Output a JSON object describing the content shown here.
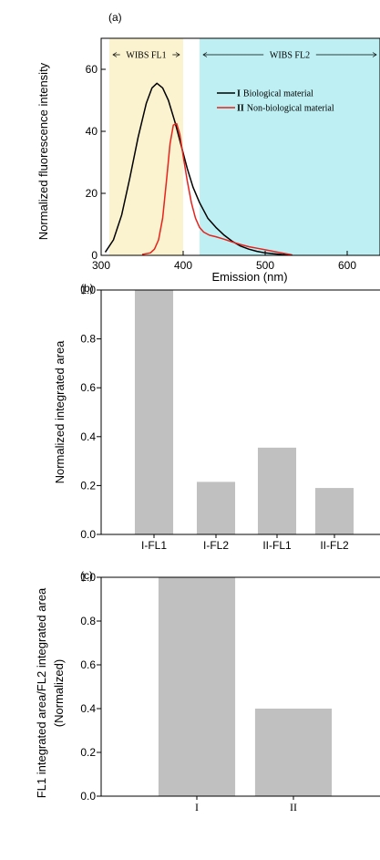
{
  "chart_data": [
    {
      "panel_label": "(a)",
      "type": "line",
      "xlabel": "Emission (nm)",
      "ylabel": "Normalized fluorescence intensity",
      "xlim": [
        300,
        640
      ],
      "ylim": [
        0,
        70
      ],
      "xticks": [
        300,
        400,
        500,
        600
      ],
      "yticks": [
        0,
        20,
        40,
        60
      ],
      "bands": [
        {
          "label": "WIBS FL1",
          "range": [
            310,
            400
          ],
          "color": "#fbf3cf"
        },
        {
          "label": "WIBS FL2",
          "range": [
            420,
            640
          ],
          "color": "#bdeff3"
        }
      ],
      "legend": "top-right",
      "series": [
        {
          "marker": "I",
          "name": "Biological material",
          "color": "#000000",
          "x": [
            305,
            315,
            325,
            335,
            345,
            355,
            362,
            368,
            375,
            382,
            390,
            398,
            405,
            412,
            420,
            430,
            440,
            450,
            460,
            470,
            480,
            490,
            500,
            510,
            520,
            530,
            533
          ],
          "y": [
            1,
            5,
            13,
            25,
            38,
            49,
            54,
            55.5,
            54,
            50,
            43,
            35,
            28,
            22,
            17,
            12,
            9,
            6.5,
            4.5,
            3,
            2,
            1.3,
            0.8,
            0.5,
            0.3,
            0.2,
            0.1
          ]
        },
        {
          "marker": "II",
          "name": "Non-biological material",
          "color": "#e8221c",
          "x": [
            350,
            360,
            365,
            370,
            375,
            380,
            384,
            388,
            392,
            396,
            400,
            405,
            410,
            415,
            420,
            425,
            432,
            440,
            450,
            460,
            470,
            480,
            490,
            500,
            510,
            520,
            530,
            533
          ],
          "y": [
            0.3,
            0.8,
            2,
            5,
            12,
            25,
            36,
            42,
            42.5,
            39,
            32,
            24,
            17,
            12,
            9,
            7.5,
            6.5,
            6,
            5.2,
            4.3,
            3.5,
            2.8,
            2.3,
            1.8,
            1.3,
            0.8,
            0.3,
            0.1
          ]
        }
      ]
    },
    {
      "panel_label": "(b)",
      "type": "bar",
      "ylabel": "Normalized integrated area",
      "categories": [
        "I-FL1",
        "I-FL2",
        "II-FL1",
        "II-FL2"
      ],
      "values": [
        1.0,
        0.215,
        0.355,
        0.19
      ],
      "ylim": [
        0,
        1.0
      ],
      "yticks": [
        "0.0",
        "0.2",
        "0.4",
        "0.6",
        "0.8",
        "1.0"
      ],
      "bar_color": "#c0c0c0"
    },
    {
      "panel_label": "(c)",
      "type": "bar",
      "ylabel": "FL1 integrated area/FL2 integrated area",
      "ylabel2": "(Normalized)",
      "categories": [
        "I",
        "II"
      ],
      "values": [
        1.0,
        0.4
      ],
      "ylim": [
        0,
        1.0
      ],
      "yticks": [
        "0.0",
        "0.2",
        "0.4",
        "0.6",
        "0.8",
        "1.0"
      ],
      "bar_color": "#c0c0c0"
    }
  ]
}
